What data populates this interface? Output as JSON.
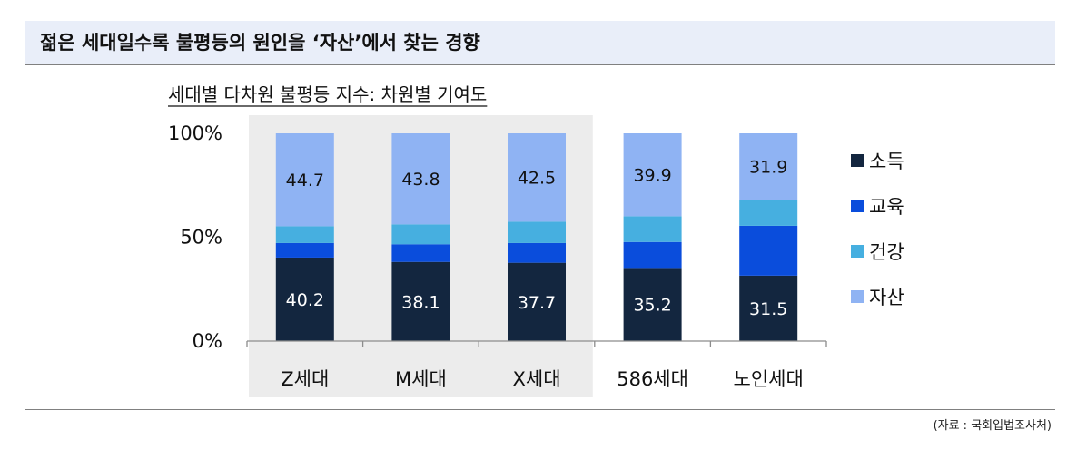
{
  "header": {
    "title": "젊은 세대일수록 불평등의 원인을 ‘자산’에서 찾는 경향"
  },
  "source": "(자료 : 국회입법조사처)",
  "colors": {
    "소득": "#13263f",
    "교육": "#0a4ddc",
    "건강": "#46afe0",
    "자산": "#8fb3f3",
    "highlight_band": "#ececec",
    "label_on_dark": "#ffffff",
    "label_on_light": "#111111"
  },
  "chart_data": {
    "type": "bar",
    "stacked": true,
    "title": "세대별 다차원 불평등 지수: 차원별 기여도",
    "xlabel": "",
    "ylabel": "",
    "ylim": [
      0,
      100
    ],
    "y_ticks": [
      "0%",
      "50%",
      "100%"
    ],
    "categories": [
      "Z세대",
      "M세대",
      "X세대",
      "586세대",
      "노인세대"
    ],
    "highlighted_categories": [
      "Z세대",
      "M세대",
      "X세대"
    ],
    "series": [
      {
        "name": "소득",
        "values": [
          40.2,
          38.1,
          37.7,
          35.2,
          31.5
        ],
        "show_labels": true
      },
      {
        "name": "교육",
        "values": [
          7.0,
          8.5,
          9.5,
          12.5,
          24.0
        ],
        "show_labels": false
      },
      {
        "name": "건강",
        "values": [
          8.1,
          9.6,
          10.3,
          12.4,
          12.6
        ],
        "show_labels": false
      },
      {
        "name": "자산",
        "values": [
          44.7,
          43.8,
          42.5,
          39.9,
          31.9
        ],
        "show_labels": true
      }
    ],
    "legend": {
      "position": "right"
    },
    "grid": false
  }
}
